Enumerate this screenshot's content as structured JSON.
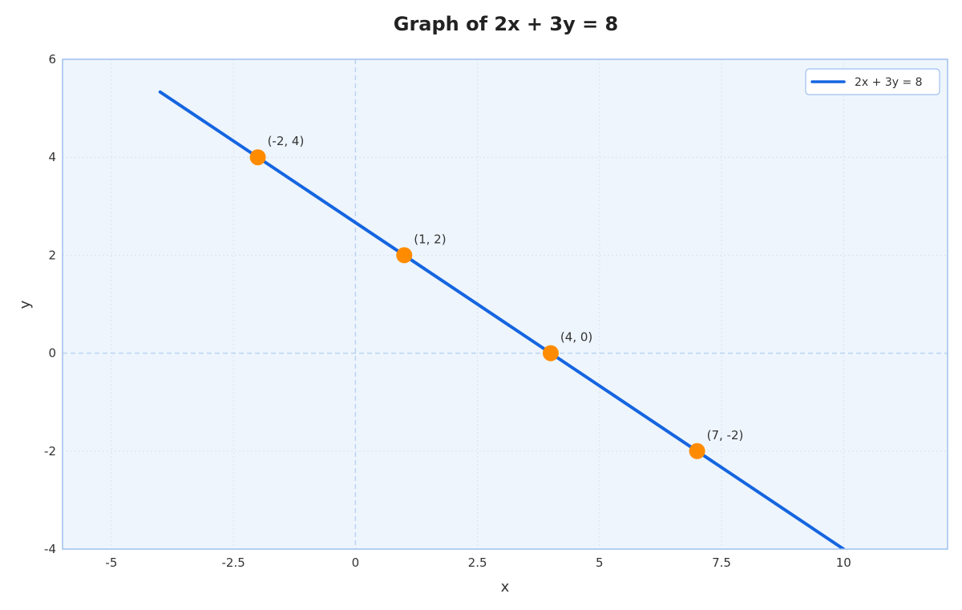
{
  "chart_data": {
    "type": "line",
    "title": "Graph of 2x + 3y = 8",
    "xlabel": "x",
    "ylabel": "y",
    "xlim": [
      -6,
      12.13
    ],
    "ylim": [
      -4,
      6
    ],
    "xticks": [
      -5,
      -2.5,
      0,
      2.5,
      5,
      7.5,
      10
    ],
    "xtick_labels": [
      "-5",
      "-2.5",
      "0",
      "2.5",
      "5",
      "7.5",
      "10"
    ],
    "yticks": [
      -4,
      -2,
      0,
      2,
      4,
      6
    ],
    "ytick_labels": [
      "-4",
      "-2",
      "0",
      "2",
      "4",
      "6"
    ],
    "grid": true,
    "legend_position": "top-right",
    "series": [
      {
        "name": "2x + 3y = 8",
        "color": "#1565e0",
        "x": [
          -4,
          10
        ],
        "y": [
          5.333,
          -4
        ]
      }
    ],
    "points": [
      {
        "x": -2,
        "y": 4,
        "label": "(-2, 4)"
      },
      {
        "x": 1,
        "y": 2,
        "label": "(1, 2)"
      },
      {
        "x": 4,
        "y": 0,
        "label": "(4, 0)"
      },
      {
        "x": 7,
        "y": -2,
        "label": "(7, -2)"
      }
    ],
    "colors": {
      "line": "#1565e0",
      "points": "#ff8c00",
      "plot_background": "#eef5fd",
      "frame": "#9fc0ee",
      "grid": "#d7e3f2",
      "zero_lines": "#bcd4f2"
    }
  }
}
